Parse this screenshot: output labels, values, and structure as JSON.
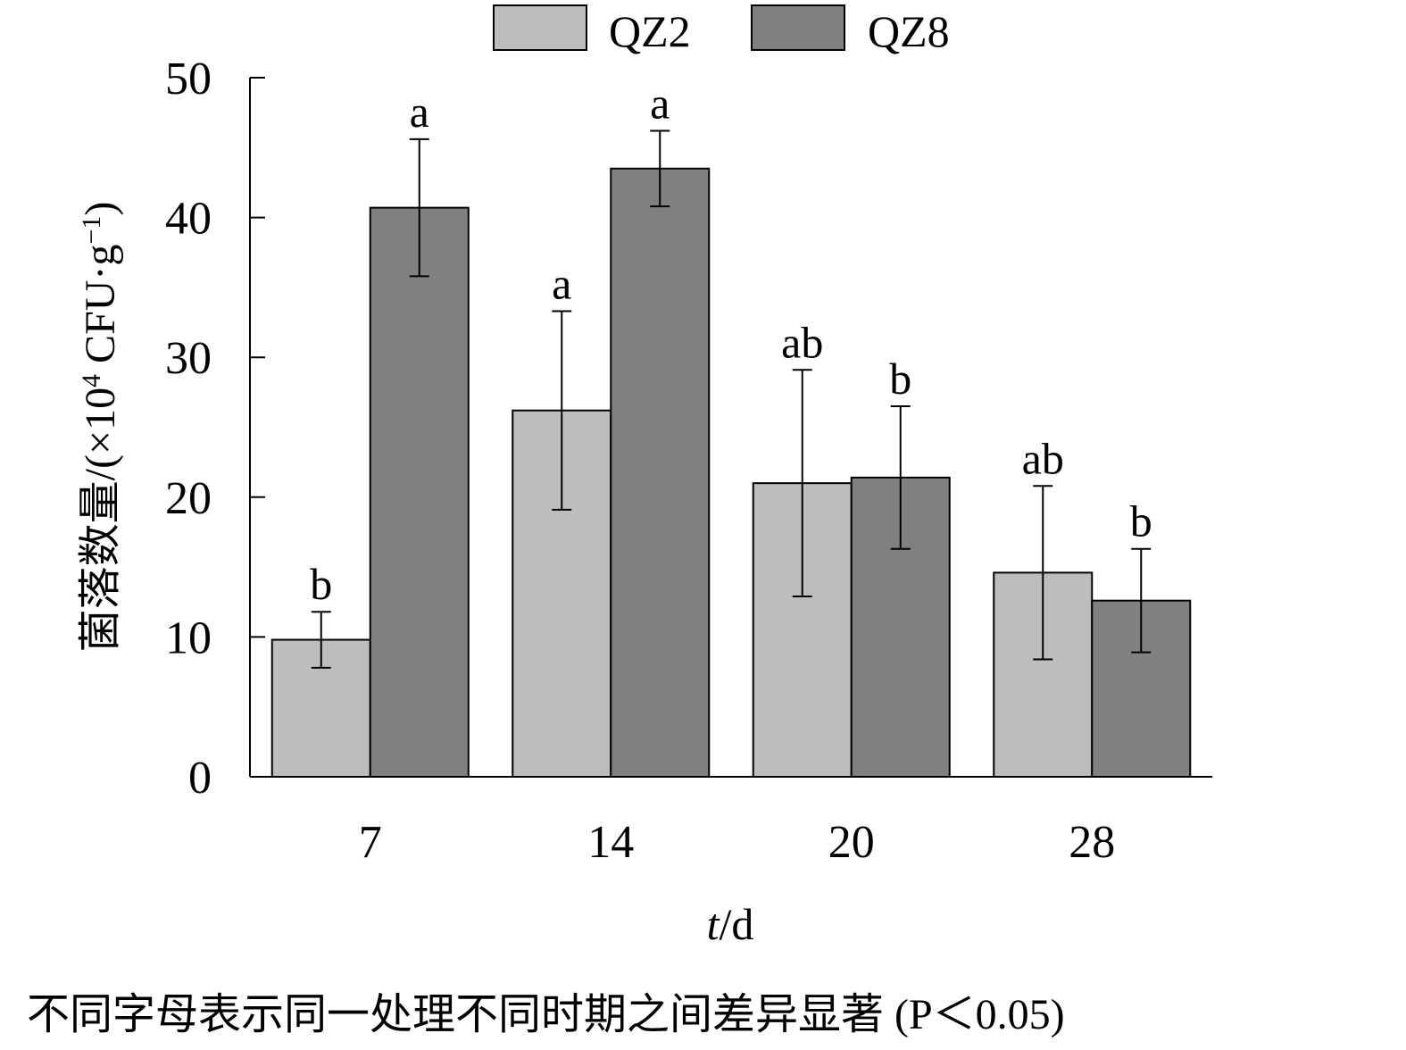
{
  "legend": {
    "items": [
      {
        "label": "QZ2",
        "color": "#bdbdbd"
      },
      {
        "label": "QZ8",
        "color": "#808080"
      }
    ]
  },
  "footnote": "不同字母表示同一处理不同时期之间差异显著 (P＜0.05)",
  "chart_data": {
    "type": "bar",
    "categories": [
      "7",
      "14",
      "20",
      "28"
    ],
    "series": [
      {
        "name": "QZ2",
        "color": "#bdbdbd",
        "values": [
          9.8,
          26.2,
          21.0,
          14.6
        ],
        "errors": [
          2.0,
          7.1,
          8.1,
          6.2
        ],
        "letters": [
          "b",
          "a",
          "ab",
          "ab"
        ]
      },
      {
        "name": "QZ8",
        "color": "#808080",
        "values": [
          40.7,
          43.5,
          21.4,
          12.6
        ],
        "errors": [
          4.9,
          2.7,
          5.1,
          3.7
        ],
        "letters": [
          "a",
          "a",
          "b",
          "b"
        ]
      }
    ],
    "ylabel_prefix": "菌落数量/(×10",
    "ylabel_exp": "4",
    "ylabel_mid": " CFU·g",
    "ylabel_exp2": "−1",
    "ylabel_suffix": ")",
    "xlabel_var": "t",
    "xlabel_unit": "/d",
    "ylim": [
      0,
      50
    ],
    "yticks": [
      "0",
      "10",
      "20",
      "30",
      "40",
      "50"
    ],
    "grid": false,
    "legend_position": "top"
  }
}
